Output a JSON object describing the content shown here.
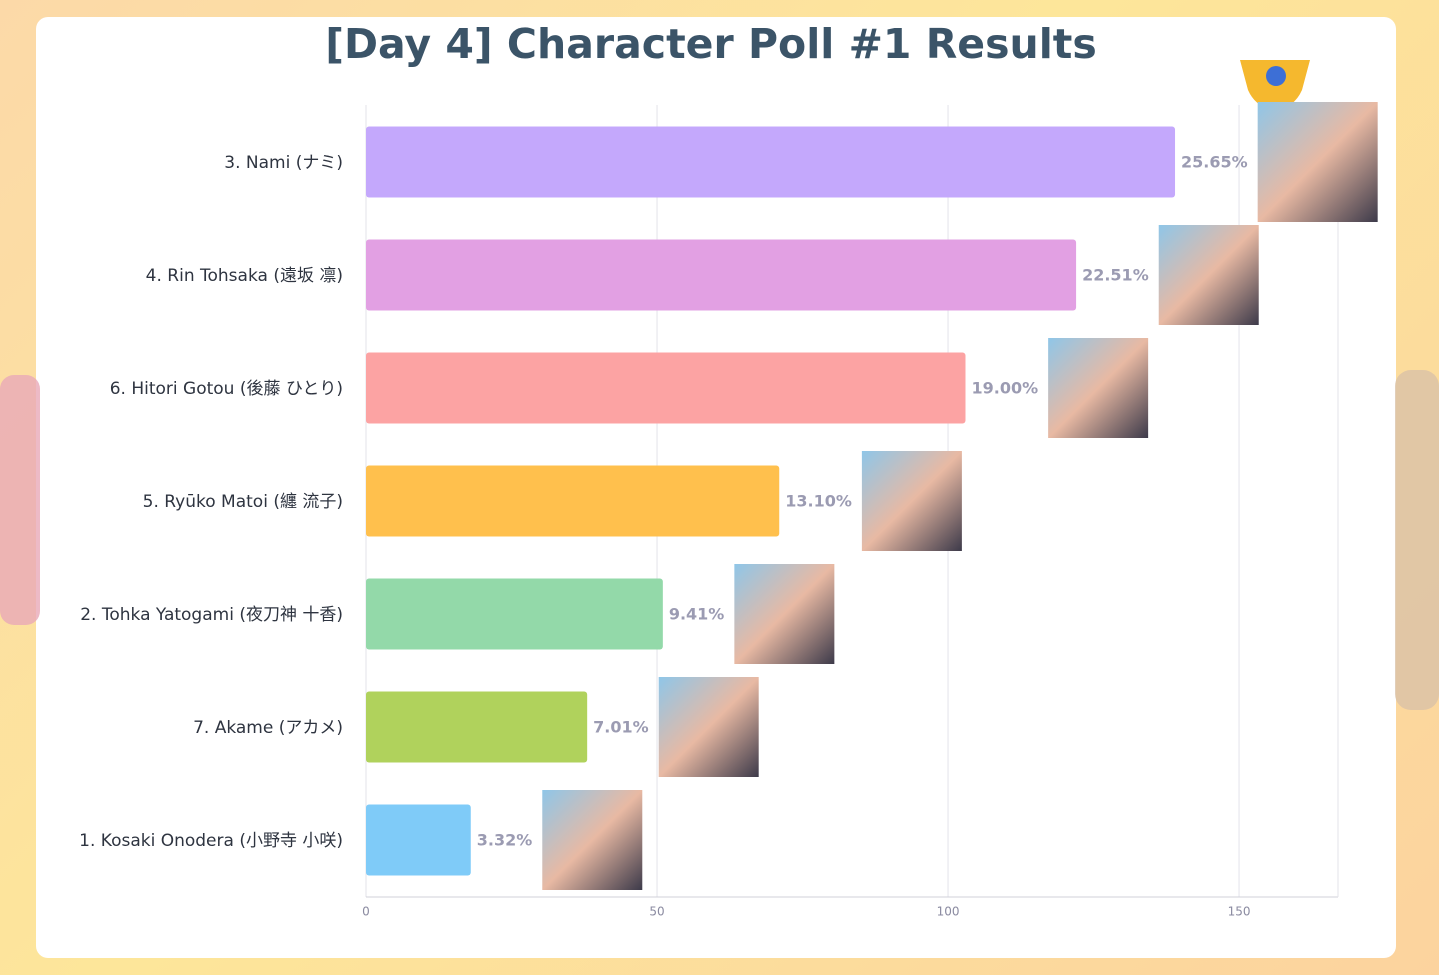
{
  "chart_data": {
    "type": "bar",
    "orientation": "horizontal",
    "title": "[Day 4] Character Poll #1 Results",
    "categories": [
      "3. Nami (ナミ)",
      "4. Rin Tohsaka (遠坂 凛)",
      "6. Hitori Gotou (後藤 ひとり)",
      "5. Ryūko Matoi (纏 流子)",
      "2. Tohka Yatogami (夜刀神 十香)",
      "7. Akame (アカメ)",
      "1. Kosaki Onodera (小野寺 小咲)"
    ],
    "values": [
      139,
      122,
      103,
      71,
      51,
      38,
      18
    ],
    "value_labels": [
      "25.65%",
      "22.51%",
      "19.00%",
      "13.10%",
      "9.41%",
      "7.01%",
      "3.32%"
    ],
    "colors": [
      "#c4a8fc",
      "#e2a0e3",
      "#fca3a3",
      "#ffc04d",
      "#93d9a9",
      "#b0d25c",
      "#7fcbf8"
    ],
    "xlim": [
      0,
      167
    ],
    "xticks": [
      0,
      50,
      100,
      150
    ],
    "grid": true
  }
}
